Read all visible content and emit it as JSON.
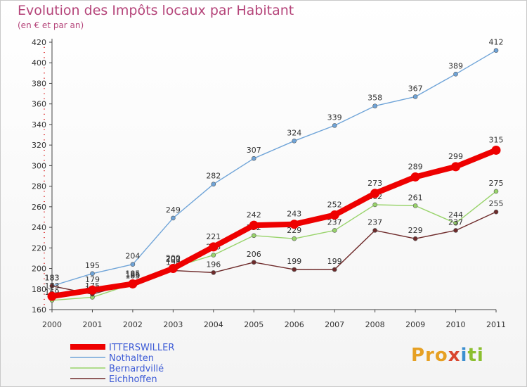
{
  "title": "Evolution des Impôts locaux par Habitant",
  "subtitle": "(en € et par an)",
  "logo": {
    "text": "Proxiti"
  },
  "chart_data": {
    "type": "line",
    "x": [
      "2000",
      "2001",
      "2002",
      "2003",
      "2004",
      "2005",
      "2006",
      "2007",
      "2008",
      "2009",
      "2010",
      "2011"
    ],
    "ylim": [
      160,
      420
    ],
    "yticks": [
      160,
      180,
      200,
      220,
      240,
      260,
      280,
      300,
      320,
      340,
      360,
      380,
      400,
      420
    ],
    "grid": false,
    "legend_position": "bottom-left",
    "series": [
      {
        "name": "ITTERSWILLER",
        "color": "#ee0000",
        "emphasis": true,
        "values": [
          173,
          179,
          185,
          200,
          221,
          242,
          243,
          252,
          273,
          289,
          299,
          315
        ]
      },
      {
        "name": "Nothalten",
        "color": "#6fa4d8",
        "values": [
          183,
          195,
          204,
          249,
          282,
          307,
          324,
          339,
          358,
          367,
          389,
          412
        ]
      },
      {
        "name": "Bernardvillé",
        "color": "#98d36a",
        "values": [
          169,
          172,
          185,
          201,
          213,
          232,
          229,
          237,
          262,
          261,
          244,
          275
        ]
      },
      {
        "name": "Eichhoffen",
        "color": "#6e2a2a",
        "values": [
          183,
          175,
          186,
          198,
          196,
          206,
          199,
          199,
          237,
          229,
          237,
          255
        ]
      }
    ]
  }
}
